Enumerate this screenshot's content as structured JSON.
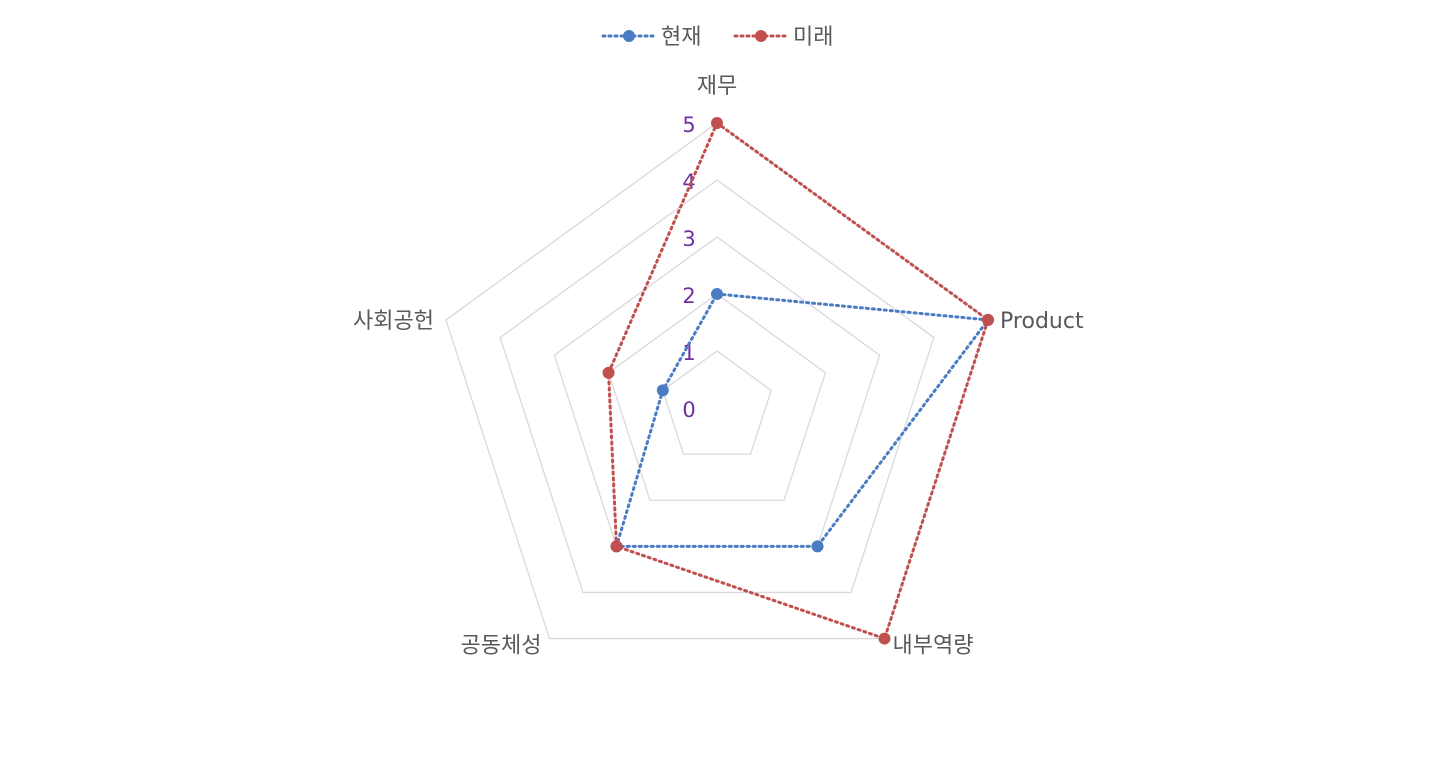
{
  "chart_data": {
    "type": "radar",
    "categories": [
      "재무",
      "Product",
      "내부역량",
      "공동체성",
      "사회공헌"
    ],
    "series": [
      {
        "name": "현재",
        "values": [
          2,
          5,
          3,
          3,
          1
        ],
        "color": "#4a7cc4"
      },
      {
        "name": "미래",
        "values": [
          5,
          5,
          5,
          3,
          2
        ],
        "color": "#c0504d"
      }
    ],
    "rlim": [
      0,
      5
    ],
    "ticks": [
      "0",
      "1",
      "2",
      "3",
      "4",
      "5"
    ],
    "grid": true,
    "grid_color": "#d9d9d9",
    "tick_color": "#7030a0",
    "line_style": "dotted",
    "legend": "top"
  }
}
